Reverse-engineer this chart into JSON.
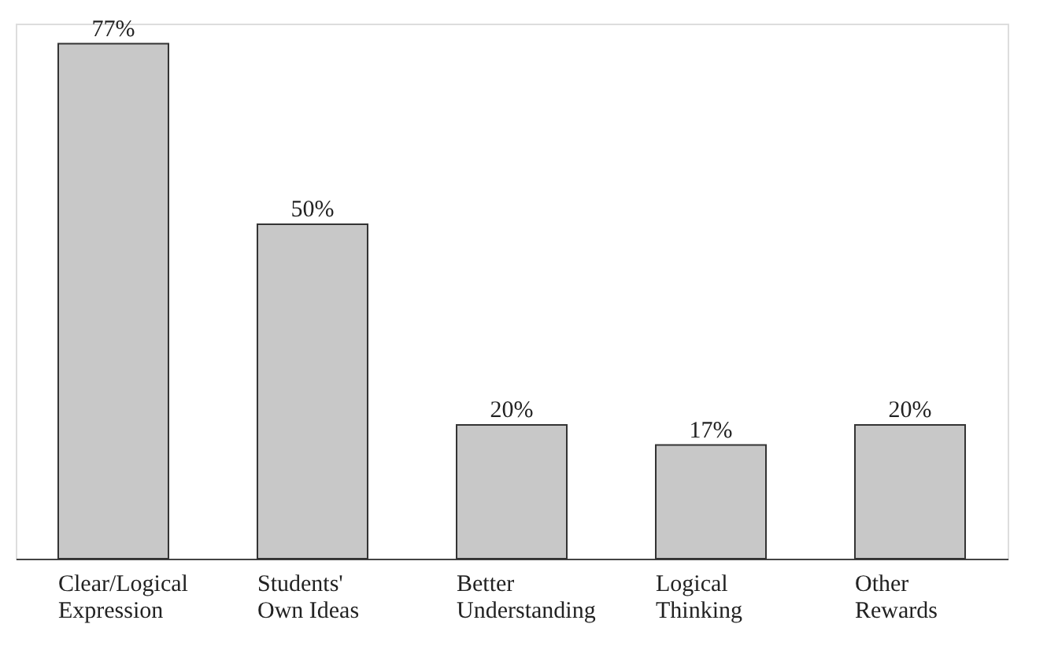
{
  "chart_data": {
    "type": "bar",
    "categories": [
      "Clear/Logical\nExpression",
      "Students'\nOwn Ideas",
      "Better\nUnderstanding",
      "Logical\nThinking",
      "Other\nRewards"
    ],
    "values": [
      77,
      50,
      20,
      17,
      20
    ],
    "value_labels": [
      "77%",
      "50%",
      "20%",
      "17%",
      "20%"
    ],
    "color": "#c8c8c8",
    "tick_labels": "x",
    "grid": false
  }
}
